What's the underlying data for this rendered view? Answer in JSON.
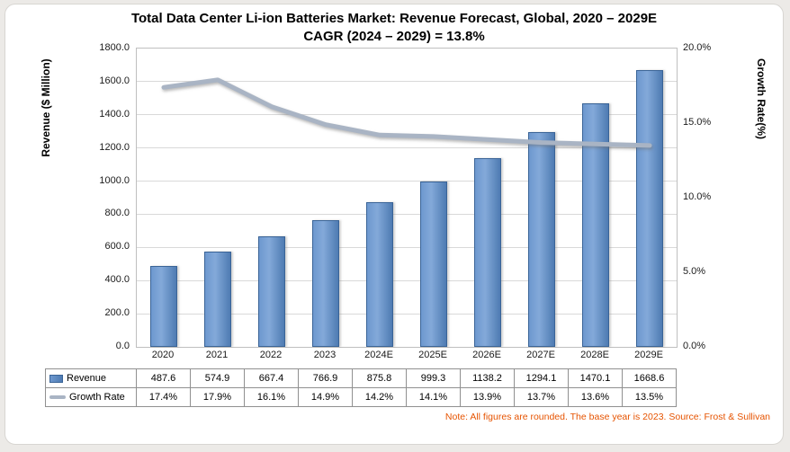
{
  "title": {
    "line1": "Total Data Center Li-ion Batteries Market: Revenue Forecast, Global, 2020 – 2029E",
    "line2": "CAGR (2024 – 2029) = 13.8%"
  },
  "axes": {
    "left_title": "Revenue ($ Million)",
    "right_title": "Growth Rate(%)"
  },
  "note": "Note: All figures are rounded. The base year is 2023. Source: Frost & Sullivan",
  "colors": {
    "bar_fill": "#4F81BD",
    "bar_border": "#3A6497",
    "line": "#A9B4C4",
    "gridline": "#D9D9D9",
    "note_text": "#E65300"
  },
  "chart_data": {
    "type": "bar+line",
    "title": "Total Data Center Li-ion Batteries Market: Revenue Forecast, Global, 2020 – 2029E",
    "subtitle": "CAGR (2024 – 2029) = 13.8%",
    "categories": [
      "2020",
      "2021",
      "2022",
      "2023",
      "2024E",
      "2025E",
      "2026E",
      "2027E",
      "2028E",
      "2029E"
    ],
    "series": [
      {
        "name": "Revenue",
        "type": "bar",
        "axis": "left",
        "values": [
          487.6,
          574.9,
          667.4,
          766.9,
          875.8,
          999.3,
          1138.2,
          1294.1,
          1470.1,
          1668.6
        ],
        "display": [
          "487.6",
          "574.9",
          "667.4",
          "766.9",
          "875.8",
          "999.3",
          "1138.2",
          "1294.1",
          "1470.1",
          "1668.6"
        ]
      },
      {
        "name": "Growth Rate",
        "type": "line",
        "axis": "right",
        "values": [
          17.4,
          17.9,
          16.1,
          14.9,
          14.2,
          14.1,
          13.9,
          13.7,
          13.6,
          13.5
        ],
        "display": [
          "17.4%",
          "17.9%",
          "16.1%",
          "14.9%",
          "14.2%",
          "14.1%",
          "13.9%",
          "13.7%",
          "13.6%",
          "13.5%"
        ]
      }
    ],
    "left_axis": {
      "label": "Revenue ($ Million)",
      "min": 0,
      "max": 1800,
      "tick_step": 200,
      "tick_labels": [
        "1800.0",
        "1600.0",
        "1400.0",
        "1200.0",
        "1000.0",
        "800.0",
        "600.0",
        "400.0",
        "200.0",
        "0.0"
      ]
    },
    "right_axis": {
      "label": "Growth Rate(%)",
      "min": 0,
      "max": 20,
      "tick_labels": [
        "20.0%",
        "15.0%",
        "10.0%",
        "5.0%",
        "0.0%"
      ]
    },
    "grid": true,
    "legend_position": "table-left"
  }
}
